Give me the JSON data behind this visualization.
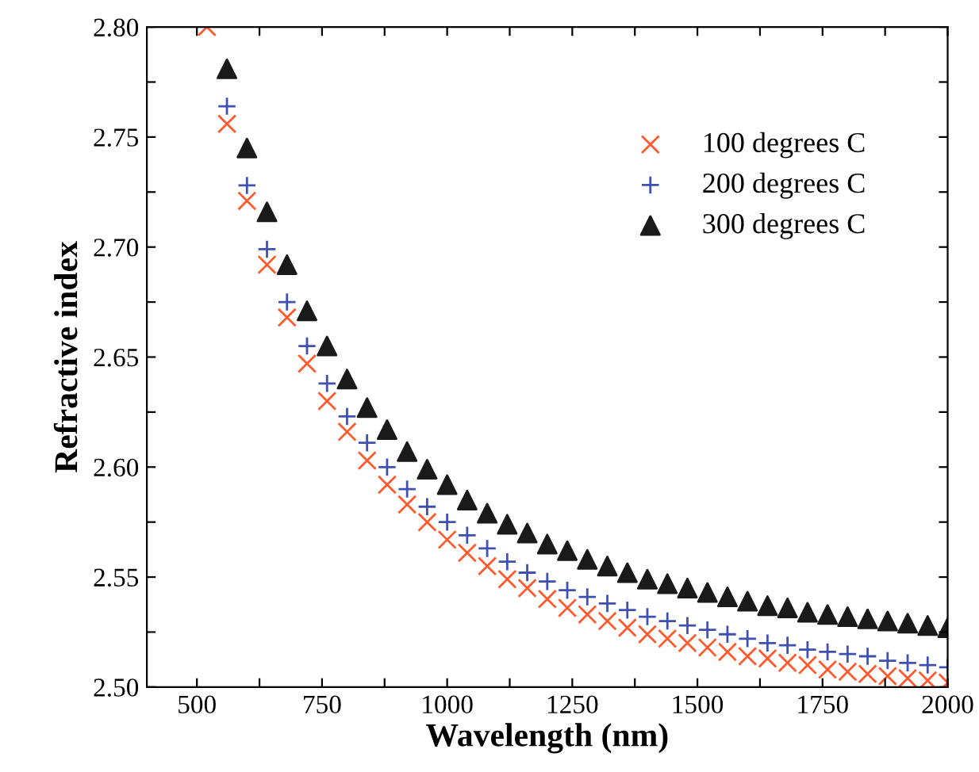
{
  "chart_data": {
    "type": "scatter",
    "xlabel": "Wavelength (nm)",
    "ylabel": "Refractive index",
    "xlim": [
      400,
      2000
    ],
    "ylim": [
      2.5,
      2.8
    ],
    "xticks": [
      {
        "value": 500,
        "label": "500"
      },
      {
        "value": 625,
        "label": null
      },
      {
        "value": 750,
        "label": "750"
      },
      {
        "value": 875,
        "label": null
      },
      {
        "value": 1000,
        "label": "1000"
      },
      {
        "value": 1125,
        "label": null
      },
      {
        "value": 1250,
        "label": "1250"
      },
      {
        "value": 1375,
        "label": null
      },
      {
        "value": 1500,
        "label": "1500"
      },
      {
        "value": 1625,
        "label": null
      },
      {
        "value": 1750,
        "label": "1750"
      },
      {
        "value": 1875,
        "label": null
      },
      {
        "value": 2000,
        "label": "2000"
      }
    ],
    "yticks": [
      {
        "value": 2.5,
        "label": "2.50"
      },
      {
        "value": 2.525,
        "label": null
      },
      {
        "value": 2.55,
        "label": "2.55"
      },
      {
        "value": 2.575,
        "label": null
      },
      {
        "value": 2.6,
        "label": "2.60"
      },
      {
        "value": 2.625,
        "label": null
      },
      {
        "value": 2.65,
        "label": "2.65"
      },
      {
        "value": 2.675,
        "label": null
      },
      {
        "value": 2.7,
        "label": "2.70"
      },
      {
        "value": 2.725,
        "label": null
      },
      {
        "value": 2.75,
        "label": "2.75"
      },
      {
        "value": 2.775,
        "label": null
      },
      {
        "value": 2.8,
        "label": "2.80"
      }
    ],
    "legend": "top right",
    "grid": false,
    "series": [
      {
        "name": "100 degrees C",
        "color": "#ff5a2e",
        "marker": "cross",
        "x": [
          520,
          560,
          600,
          640,
          680,
          720,
          760,
          800,
          840,
          880,
          920,
          960,
          1000,
          1040,
          1080,
          1120,
          1160,
          1200,
          1240,
          1280,
          1320,
          1360,
          1400,
          1440,
          1480,
          1520,
          1560,
          1600,
          1640,
          1680,
          1720,
          1760,
          1800,
          1840,
          1880,
          1920,
          1960,
          2000
        ],
        "values": [
          2.8,
          2.756,
          2.721,
          2.692,
          2.668,
          2.647,
          2.63,
          2.616,
          2.603,
          2.592,
          2.583,
          2.575,
          2.567,
          2.561,
          2.555,
          2.549,
          2.545,
          2.54,
          2.536,
          2.533,
          2.53,
          2.527,
          2.524,
          2.522,
          2.52,
          2.518,
          2.516,
          2.514,
          2.513,
          2.511,
          2.51,
          2.508,
          2.507,
          2.506,
          2.505,
          2.504,
          2.503,
          2.502
        ]
      },
      {
        "name": "200 degrees C",
        "color": "#4050b0",
        "marker": "plus",
        "x": [
          560,
          600,
          640,
          680,
          720,
          760,
          800,
          840,
          880,
          920,
          960,
          1000,
          1040,
          1080,
          1120,
          1160,
          1200,
          1240,
          1280,
          1320,
          1360,
          1400,
          1440,
          1480,
          1520,
          1560,
          1600,
          1640,
          1680,
          1720,
          1760,
          1800,
          1840,
          1880,
          1920,
          1960,
          2000
        ],
        "values": [
          2.764,
          2.728,
          2.699,
          2.675,
          2.655,
          2.638,
          2.623,
          2.611,
          2.6,
          2.59,
          2.582,
          2.575,
          2.569,
          2.563,
          2.557,
          2.552,
          2.548,
          2.544,
          2.541,
          2.538,
          2.535,
          2.532,
          2.53,
          2.528,
          2.526,
          2.524,
          2.522,
          2.52,
          2.519,
          2.517,
          2.516,
          2.515,
          2.514,
          2.512,
          2.511,
          2.51,
          2.509
        ]
      },
      {
        "name": "300 degrees C",
        "color": "#1a1a1a",
        "marker": "triangle",
        "x": [
          560,
          600,
          640,
          680,
          720,
          760,
          800,
          840,
          880,
          920,
          960,
          1000,
          1040,
          1080,
          1120,
          1160,
          1200,
          1240,
          1280,
          1320,
          1360,
          1400,
          1440,
          1480,
          1520,
          1560,
          1600,
          1640,
          1680,
          1720,
          1760,
          1800,
          1840,
          1880,
          1920,
          1960,
          2000
        ],
        "values": [
          2.781,
          2.745,
          2.716,
          2.692,
          2.671,
          2.655,
          2.64,
          2.627,
          2.617,
          2.607,
          2.599,
          2.592,
          2.585,
          2.579,
          2.574,
          2.57,
          2.565,
          2.562,
          2.558,
          2.555,
          2.552,
          2.549,
          2.547,
          2.545,
          2.543,
          2.541,
          2.539,
          2.537,
          2.536,
          2.534,
          2.533,
          2.532,
          2.531,
          2.53,
          2.529,
          2.528,
          2.527
        ]
      }
    ]
  }
}
